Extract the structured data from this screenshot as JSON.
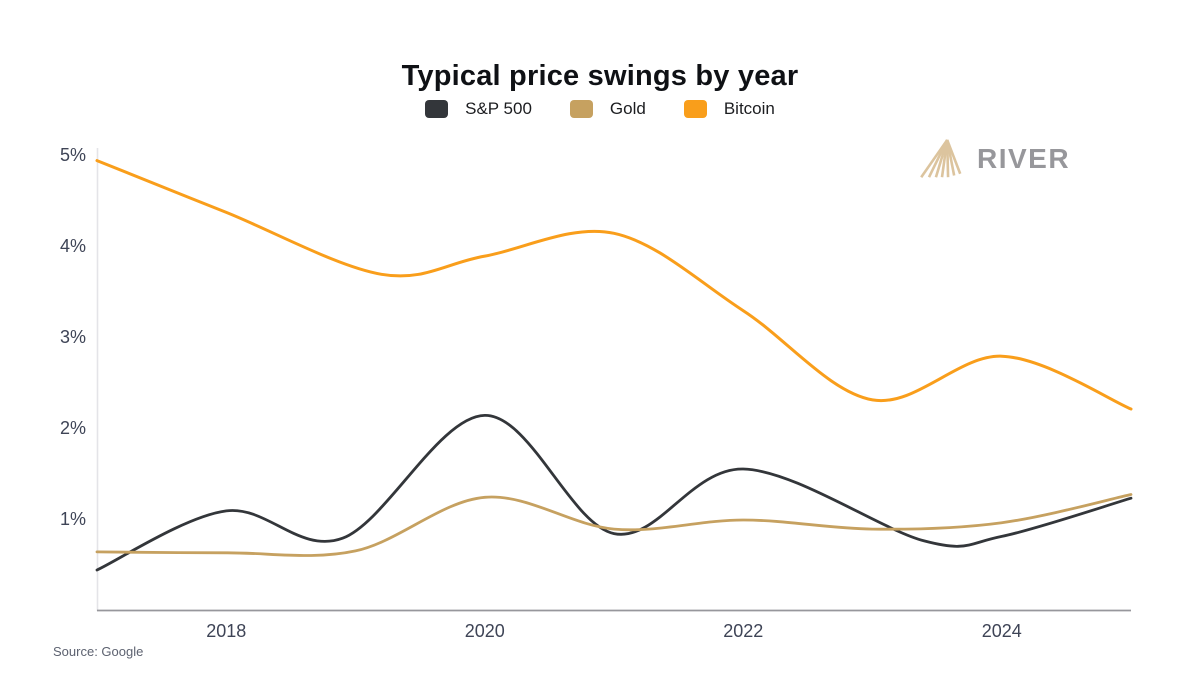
{
  "title": "Typical price swings by year",
  "source": "Source: Google",
  "brand": {
    "name": "RIVER",
    "icon": "river-peak-icon",
    "icon_color": "#dcc49e",
    "text_color": "#97979b"
  },
  "chart_data": {
    "type": "line",
    "title": "Typical price swings by year",
    "xlabel": "",
    "ylabel": "",
    "grid": false,
    "legend_position": "top-center",
    "x_range": [
      2017,
      2025
    ],
    "y_range": [
      0,
      5.2
    ],
    "x_ticks": [
      2018,
      2020,
      2022,
      2024
    ],
    "x_tick_labels": [
      "2018",
      "2020",
      "2022",
      "2024"
    ],
    "y_ticks": [
      5,
      4,
      3,
      2,
      1
    ],
    "y_tick_labels": [
      "5%",
      "4%",
      "3%",
      "2%",
      "1%"
    ],
    "axis_color": "#97979c",
    "left_axis_color": "#e4e4e8",
    "series": [
      {
        "name": "S&P 500",
        "color": "#33363a",
        "points": [
          [
            2017,
            0.45
          ],
          [
            2018,
            1.1
          ],
          [
            2018.9,
            0.8
          ],
          [
            2020,
            2.15
          ],
          [
            2021,
            0.85
          ],
          [
            2022,
            1.56
          ],
          [
            2023.4,
            0.77
          ],
          [
            2024,
            0.82
          ],
          [
            2025,
            1.24
          ]
        ]
      },
      {
        "name": "Gold",
        "color": "#c6a160",
        "points": [
          [
            2017,
            0.65
          ],
          [
            2018,
            0.64
          ],
          [
            2019,
            0.66
          ],
          [
            2020,
            1.25
          ],
          [
            2021,
            0.9
          ],
          [
            2022,
            1.0
          ],
          [
            2023,
            0.9
          ],
          [
            2024,
            0.97
          ],
          [
            2025,
            1.28
          ]
        ]
      },
      {
        "name": "Bitcoin",
        "color": "#f99e1b",
        "points": [
          [
            2017,
            4.95
          ],
          [
            2018,
            4.38
          ],
          [
            2019.2,
            3.7
          ],
          [
            2020,
            3.9
          ],
          [
            2021,
            4.15
          ],
          [
            2022,
            3.3
          ],
          [
            2023,
            2.32
          ],
          [
            2024,
            2.8
          ],
          [
            2025,
            2.22
          ]
        ]
      }
    ]
  }
}
